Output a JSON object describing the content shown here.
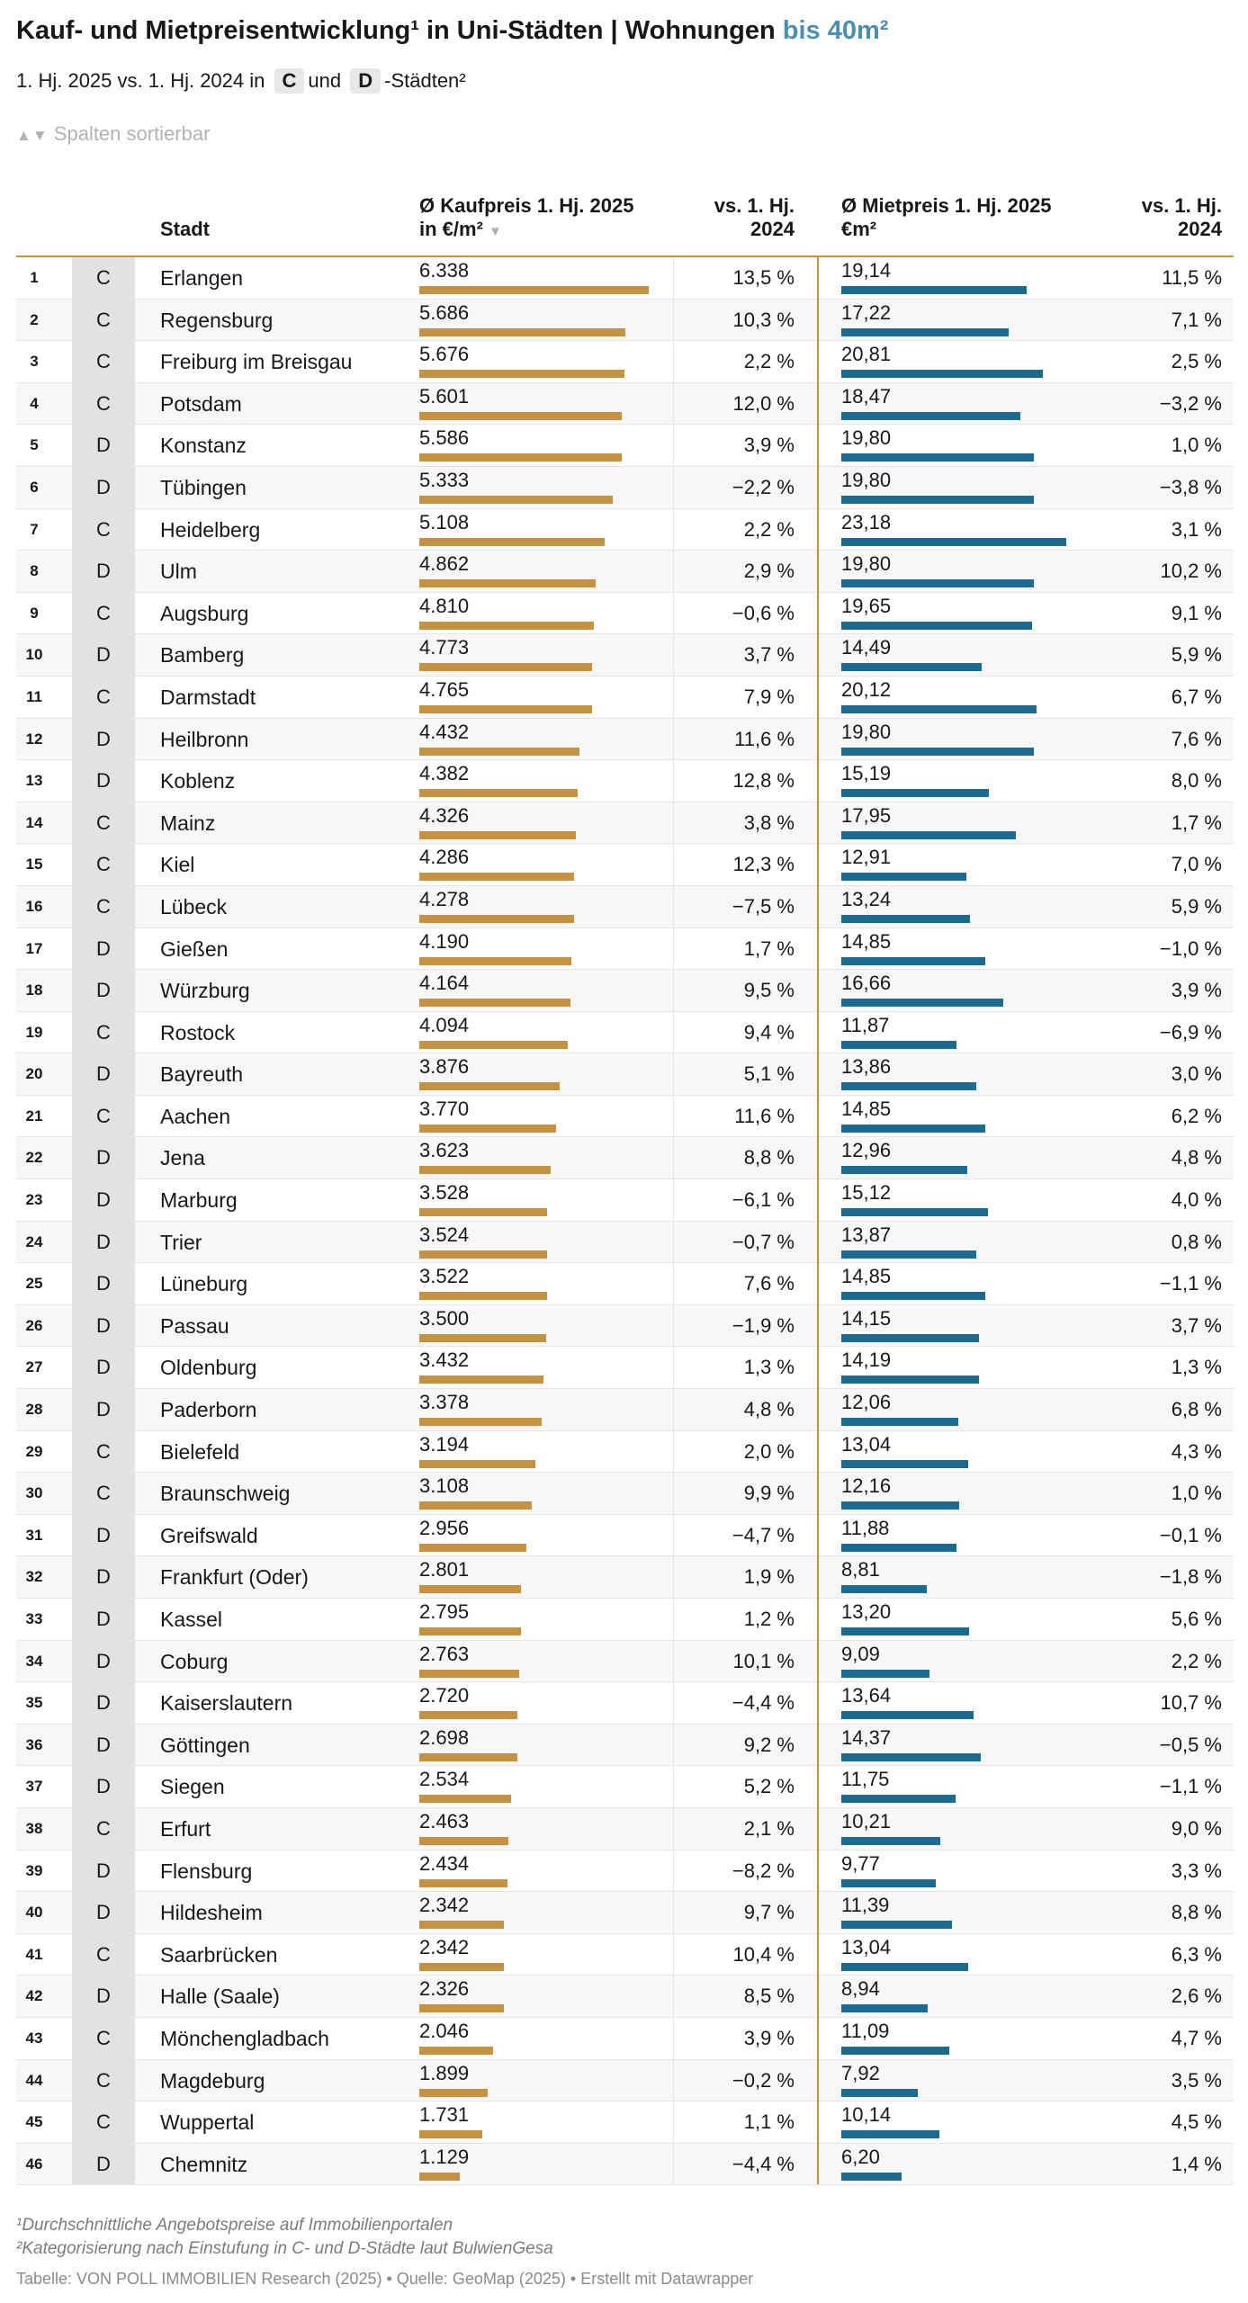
{
  "header": {
    "title_main": "Kauf- und Mietpreisentwicklung¹ in Uni-Städten | Wohnungen",
    "title_highlight": "bis 40m²",
    "subtitle_pre": "1. Hj. 2025 vs. 1. Hj. 2024 in",
    "subtitle_c": "C",
    "subtitle_und": "und",
    "subtitle_d": "D",
    "subtitle_post": "-Städten²",
    "sort_arrows": "▲▼",
    "sort_note": "Spalten sortierbar"
  },
  "colors": {
    "kauf_bar": "#c49241",
    "miet_bar": "#1c6a90",
    "highlight": "#4d8fb0"
  },
  "chart_data": {
    "type": "table",
    "columns": {
      "stadt": "Stadt",
      "kauf_line1": "Ø Kaufpreis 1. Hj. 2025",
      "kauf_line2": "in €/m²",
      "kauf_sort": "▼",
      "vs_line1": "vs. 1. Hj.",
      "vs_line2": "2024",
      "miet_line1": "Ø Mietpreis 1. Hj. 2025",
      "miet_line2": "€m²"
    },
    "kauf_bar_max": 6338,
    "miet_bar_max": 23.18,
    "rows": [
      {
        "rank": "1",
        "cat": "C",
        "city": "Erlangen",
        "kauf": 6338,
        "kauf_label": "6.338",
        "kauf_change": "13,5 %",
        "miet": 19.14,
        "miet_label": "19,14",
        "miet_change": "11,5 %"
      },
      {
        "rank": "2",
        "cat": "C",
        "city": "Regensburg",
        "kauf": 5686,
        "kauf_label": "5.686",
        "kauf_change": "10,3 %",
        "miet": 17.22,
        "miet_label": "17,22",
        "miet_change": "7,1 %"
      },
      {
        "rank": "3",
        "cat": "C",
        "city": "Freiburg im Breisgau",
        "kauf": 5676,
        "kauf_label": "5.676",
        "kauf_change": "2,2 %",
        "miet": 20.81,
        "miet_label": "20,81",
        "miet_change": "2,5 %"
      },
      {
        "rank": "4",
        "cat": "C",
        "city": "Potsdam",
        "kauf": 5601,
        "kauf_label": "5.601",
        "kauf_change": "12,0 %",
        "miet": 18.47,
        "miet_label": "18,47",
        "miet_change": "−3,2 %"
      },
      {
        "rank": "5",
        "cat": "D",
        "city": "Konstanz",
        "kauf": 5586,
        "kauf_label": "5.586",
        "kauf_change": "3,9 %",
        "miet": 19.8,
        "miet_label": "19,80",
        "miet_change": "1,0 %"
      },
      {
        "rank": "6",
        "cat": "D",
        "city": "Tübingen",
        "kauf": 5333,
        "kauf_label": "5.333",
        "kauf_change": "−2,2 %",
        "miet": 19.8,
        "miet_label": "19,80",
        "miet_change": "−3,8 %"
      },
      {
        "rank": "7",
        "cat": "C",
        "city": "Heidelberg",
        "kauf": 5108,
        "kauf_label": "5.108",
        "kauf_change": "2,2 %",
        "miet": 23.18,
        "miet_label": "23,18",
        "miet_change": "3,1 %"
      },
      {
        "rank": "8",
        "cat": "D",
        "city": "Ulm",
        "kauf": 4862,
        "kauf_label": "4.862",
        "kauf_change": "2,9 %",
        "miet": 19.8,
        "miet_label": "19,80",
        "miet_change": "10,2 %"
      },
      {
        "rank": "9",
        "cat": "C",
        "city": "Augsburg",
        "kauf": 4810,
        "kauf_label": "4.810",
        "kauf_change": "−0,6 %",
        "miet": 19.65,
        "miet_label": "19,65",
        "miet_change": "9,1 %"
      },
      {
        "rank": "10",
        "cat": "D",
        "city": "Bamberg",
        "kauf": 4773,
        "kauf_label": "4.773",
        "kauf_change": "3,7 %",
        "miet": 14.49,
        "miet_label": "14,49",
        "miet_change": "5,9 %"
      },
      {
        "rank": "11",
        "cat": "C",
        "city": "Darmstadt",
        "kauf": 4765,
        "kauf_label": "4.765",
        "kauf_change": "7,9 %",
        "miet": 20.12,
        "miet_label": "20,12",
        "miet_change": "6,7 %"
      },
      {
        "rank": "12",
        "cat": "D",
        "city": "Heilbronn",
        "kauf": 4432,
        "kauf_label": "4.432",
        "kauf_change": "11,6 %",
        "miet": 19.8,
        "miet_label": "19,80",
        "miet_change": "7,6 %"
      },
      {
        "rank": "13",
        "cat": "D",
        "city": "Koblenz",
        "kauf": 4382,
        "kauf_label": "4.382",
        "kauf_change": "12,8 %",
        "miet": 15.19,
        "miet_label": "15,19",
        "miet_change": "8,0 %"
      },
      {
        "rank": "14",
        "cat": "C",
        "city": "Mainz",
        "kauf": 4326,
        "kauf_label": "4.326",
        "kauf_change": "3,8 %",
        "miet": 17.95,
        "miet_label": "17,95",
        "miet_change": "1,7 %"
      },
      {
        "rank": "15",
        "cat": "C",
        "city": "Kiel",
        "kauf": 4286,
        "kauf_label": "4.286",
        "kauf_change": "12,3 %",
        "miet": 12.91,
        "miet_label": "12,91",
        "miet_change": "7,0 %"
      },
      {
        "rank": "16",
        "cat": "C",
        "city": "Lübeck",
        "kauf": 4278,
        "kauf_label": "4.278",
        "kauf_change": "−7,5 %",
        "miet": 13.24,
        "miet_label": "13,24",
        "miet_change": "5,9 %"
      },
      {
        "rank": "17",
        "cat": "D",
        "city": "Gießen",
        "kauf": 4190,
        "kauf_label": "4.190",
        "kauf_change": "1,7 %",
        "miet": 14.85,
        "miet_label": "14,85",
        "miet_change": "−1,0 %"
      },
      {
        "rank": "18",
        "cat": "D",
        "city": "Würzburg",
        "kauf": 4164,
        "kauf_label": "4.164",
        "kauf_change": "9,5 %",
        "miet": 16.66,
        "miet_label": "16,66",
        "miet_change": "3,9 %"
      },
      {
        "rank": "19",
        "cat": "C",
        "city": "Rostock",
        "kauf": 4094,
        "kauf_label": "4.094",
        "kauf_change": "9,4 %",
        "miet": 11.87,
        "miet_label": "11,87",
        "miet_change": "−6,9 %"
      },
      {
        "rank": "20",
        "cat": "D",
        "city": "Bayreuth",
        "kauf": 3876,
        "kauf_label": "3.876",
        "kauf_change": "5,1 %",
        "miet": 13.86,
        "miet_label": "13,86",
        "miet_change": "3,0 %"
      },
      {
        "rank": "21",
        "cat": "C",
        "city": "Aachen",
        "kauf": 3770,
        "kauf_label": "3.770",
        "kauf_change": "11,6 %",
        "miet": 14.85,
        "miet_label": "14,85",
        "miet_change": "6,2 %"
      },
      {
        "rank": "22",
        "cat": "D",
        "city": "Jena",
        "kauf": 3623,
        "kauf_label": "3.623",
        "kauf_change": "8,8 %",
        "miet": 12.96,
        "miet_label": "12,96",
        "miet_change": "4,8 %"
      },
      {
        "rank": "23",
        "cat": "D",
        "city": "Marburg",
        "kauf": 3528,
        "kauf_label": "3.528",
        "kauf_change": "−6,1 %",
        "miet": 15.12,
        "miet_label": "15,12",
        "miet_change": "4,0 %"
      },
      {
        "rank": "24",
        "cat": "D",
        "city": "Trier",
        "kauf": 3524,
        "kauf_label": "3.524",
        "kauf_change": "−0,7 %",
        "miet": 13.87,
        "miet_label": "13,87",
        "miet_change": "0,8 %"
      },
      {
        "rank": "25",
        "cat": "D",
        "city": "Lüneburg",
        "kauf": 3522,
        "kauf_label": "3.522",
        "kauf_change": "7,6 %",
        "miet": 14.85,
        "miet_label": "14,85",
        "miet_change": "−1,1 %"
      },
      {
        "rank": "26",
        "cat": "D",
        "city": "Passau",
        "kauf": 3500,
        "kauf_label": "3.500",
        "kauf_change": "−1,9 %",
        "miet": 14.15,
        "miet_label": "14,15",
        "miet_change": "3,7 %"
      },
      {
        "rank": "27",
        "cat": "D",
        "city": "Oldenburg",
        "kauf": 3432,
        "kauf_label": "3.432",
        "kauf_change": "1,3 %",
        "miet": 14.19,
        "miet_label": "14,19",
        "miet_change": "1,3 %"
      },
      {
        "rank": "28",
        "cat": "D",
        "city": "Paderborn",
        "kauf": 3378,
        "kauf_label": "3.378",
        "kauf_change": "4,8 %",
        "miet": 12.06,
        "miet_label": "12,06",
        "miet_change": "6,8 %"
      },
      {
        "rank": "29",
        "cat": "C",
        "city": "Bielefeld",
        "kauf": 3194,
        "kauf_label": "3.194",
        "kauf_change": "2,0 %",
        "miet": 13.04,
        "miet_label": "13,04",
        "miet_change": "4,3 %"
      },
      {
        "rank": "30",
        "cat": "C",
        "city": "Braunschweig",
        "kauf": 3108,
        "kauf_label": "3.108",
        "kauf_change": "9,9 %",
        "miet": 12.16,
        "miet_label": "12,16",
        "miet_change": "1,0 %"
      },
      {
        "rank": "31",
        "cat": "D",
        "city": "Greifswald",
        "kauf": 2956,
        "kauf_label": "2.956",
        "kauf_change": "−4,7 %",
        "miet": 11.88,
        "miet_label": "11,88",
        "miet_change": "−0,1 %"
      },
      {
        "rank": "32",
        "cat": "D",
        "city": "Frankfurt (Oder)",
        "kauf": 2801,
        "kauf_label": "2.801",
        "kauf_change": "1,9 %",
        "miet": 8.81,
        "miet_label": "8,81",
        "miet_change": "−1,8 %"
      },
      {
        "rank": "33",
        "cat": "D",
        "city": "Kassel",
        "kauf": 2795,
        "kauf_label": "2.795",
        "kauf_change": "1,2 %",
        "miet": 13.2,
        "miet_label": "13,20",
        "miet_change": "5,6 %"
      },
      {
        "rank": "34",
        "cat": "D",
        "city": "Coburg",
        "kauf": 2763,
        "kauf_label": "2.763",
        "kauf_change": "10,1 %",
        "miet": 9.09,
        "miet_label": "9,09",
        "miet_change": "2,2 %"
      },
      {
        "rank": "35",
        "cat": "D",
        "city": "Kaiserslautern",
        "kauf": 2720,
        "kauf_label": "2.720",
        "kauf_change": "−4,4 %",
        "miet": 13.64,
        "miet_label": "13,64",
        "miet_change": "10,7 %"
      },
      {
        "rank": "36",
        "cat": "D",
        "city": "Göttingen",
        "kauf": 2698,
        "kauf_label": "2.698",
        "kauf_change": "9,2 %",
        "miet": 14.37,
        "miet_label": "14,37",
        "miet_change": "−0,5 %"
      },
      {
        "rank": "37",
        "cat": "D",
        "city": "Siegen",
        "kauf": 2534,
        "kauf_label": "2.534",
        "kauf_change": "5,2 %",
        "miet": 11.75,
        "miet_label": "11,75",
        "miet_change": "−1,1 %"
      },
      {
        "rank": "38",
        "cat": "C",
        "city": "Erfurt",
        "kauf": 2463,
        "kauf_label": "2.463",
        "kauf_change": "2,1 %",
        "miet": 10.21,
        "miet_label": "10,21",
        "miet_change": "9,0 %"
      },
      {
        "rank": "39",
        "cat": "D",
        "city": "Flensburg",
        "kauf": 2434,
        "kauf_label": "2.434",
        "kauf_change": "−8,2 %",
        "miet": 9.77,
        "miet_label": "9,77",
        "miet_change": "3,3 %"
      },
      {
        "rank": "40",
        "cat": "D",
        "city": "Hildesheim",
        "kauf": 2342,
        "kauf_label": "2.342",
        "kauf_change": "9,7 %",
        "miet": 11.39,
        "miet_label": "11,39",
        "miet_change": "8,8 %"
      },
      {
        "rank": "41",
        "cat": "C",
        "city": "Saarbrücken",
        "kauf": 2342,
        "kauf_label": "2.342",
        "kauf_change": "10,4 %",
        "miet": 13.04,
        "miet_label": "13,04",
        "miet_change": "6,3 %"
      },
      {
        "rank": "42",
        "cat": "D",
        "city": "Halle (Saale)",
        "kauf": 2326,
        "kauf_label": "2.326",
        "kauf_change": "8,5 %",
        "miet": 8.94,
        "miet_label": "8,94",
        "miet_change": "2,6 %"
      },
      {
        "rank": "43",
        "cat": "C",
        "city": "Mönchengladbach",
        "kauf": 2046,
        "kauf_label": "2.046",
        "kauf_change": "3,9 %",
        "miet": 11.09,
        "miet_label": "11,09",
        "miet_change": "4,7 %"
      },
      {
        "rank": "44",
        "cat": "C",
        "city": "Magdeburg",
        "kauf": 1899,
        "kauf_label": "1.899",
        "kauf_change": "−0,2 %",
        "miet": 7.92,
        "miet_label": "7,92",
        "miet_change": "3,5 %"
      },
      {
        "rank": "45",
        "cat": "C",
        "city": "Wuppertal",
        "kauf": 1731,
        "kauf_label": "1.731",
        "kauf_change": "1,1 %",
        "miet": 10.14,
        "miet_label": "10,14",
        "miet_change": "4,5 %"
      },
      {
        "rank": "46",
        "cat": "D",
        "city": "Chemnitz",
        "kauf": 1129,
        "kauf_label": "1.129",
        "kauf_change": "−4,4 %",
        "miet": 6.2,
        "miet_label": "6,20",
        "miet_change": "1,4 %"
      }
    ]
  },
  "footer": {
    "note1": "¹Durchschnittliche Angebotspreise auf Immobilienportalen",
    "note2": "²Kategorisierung nach Einstufung in C- und D-Städte laut BulwienGesa",
    "source": "Tabelle: VON POLL IMMOBILIEN Research (2025) • Quelle: GeoMap (2025) • Erstellt mit Datawrapper"
  }
}
